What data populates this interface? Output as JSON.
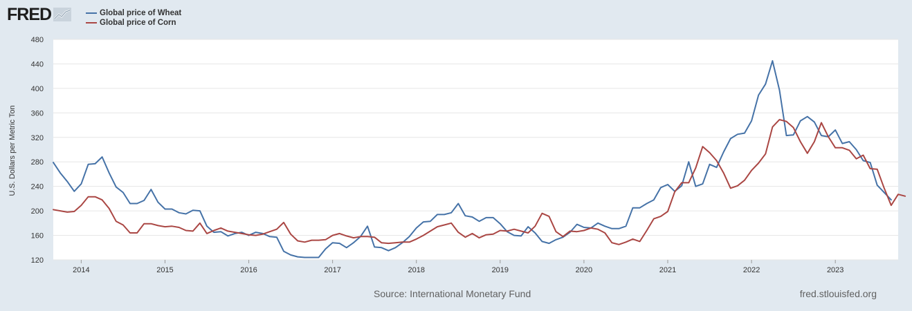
{
  "header": {
    "logo_text": "FRED",
    "logo_icon": "trend-chart-icon"
  },
  "legend": [
    {
      "label": "Global price of Wheat",
      "color": "#4572a7"
    },
    {
      "label": "Global price of Corn",
      "color": "#aa4643"
    }
  ],
  "footer": {
    "source": "Source: International Monetary Fund",
    "site": "fred.stlouisfed.org"
  },
  "colors": {
    "background": "#e1e9f0",
    "plot_background": "#ffffff",
    "grid": "#e6e6e6",
    "wheat": "#4572a7",
    "corn": "#aa4643"
  },
  "chart_data": {
    "type": "line",
    "title": "",
    "xlabel": "",
    "ylabel": "U.S. Dollars per Metric Ton",
    "x_range": [
      "2013-09",
      "2023-10"
    ],
    "x_tick_labels": [
      "2014",
      "2015",
      "2016",
      "2017",
      "2018",
      "2019",
      "2020",
      "2021",
      "2022",
      "2023"
    ],
    "ylim": [
      120,
      480
    ],
    "y_ticks": [
      120,
      160,
      200,
      240,
      280,
      320,
      360,
      400,
      440,
      480
    ],
    "grid": true,
    "legend_position": "top-left",
    "series": [
      {
        "name": "Global price of Wheat",
        "color": "#4572a7",
        "points": [
          [
            "2013-09",
            279
          ],
          [
            "2013-10",
            262
          ],
          [
            "2013-11",
            248
          ],
          [
            "2013-12",
            232
          ],
          [
            "2014-01",
            244
          ],
          [
            "2014-02",
            276
          ],
          [
            "2014-03",
            277
          ],
          [
            "2014-04",
            288
          ],
          [
            "2014-05",
            262
          ],
          [
            "2014-06",
            239
          ],
          [
            "2014-07",
            230
          ],
          [
            "2014-08",
            212
          ],
          [
            "2014-09",
            212
          ],
          [
            "2014-10",
            217
          ],
          [
            "2014-11",
            235
          ],
          [
            "2014-12",
            214
          ],
          [
            "2015-01",
            203
          ],
          [
            "2015-02",
            203
          ],
          [
            "2015-03",
            197
          ],
          [
            "2015-04",
            195
          ],
          [
            "2015-05",
            201
          ],
          [
            "2015-06",
            200
          ],
          [
            "2015-07",
            175
          ],
          [
            "2015-08",
            165
          ],
          [
            "2015-09",
            166
          ],
          [
            "2015-10",
            159
          ],
          [
            "2015-11",
            163
          ],
          [
            "2015-12",
            165
          ],
          [
            "2016-01",
            160
          ],
          [
            "2016-02",
            165
          ],
          [
            "2016-03",
            163
          ],
          [
            "2016-04",
            158
          ],
          [
            "2016-05",
            157
          ],
          [
            "2016-06",
            134
          ],
          [
            "2016-07",
            128
          ],
          [
            "2016-08",
            125
          ],
          [
            "2016-09",
            124
          ],
          [
            "2016-10",
            124
          ],
          [
            "2016-11",
            124
          ],
          [
            "2016-12",
            138
          ],
          [
            "2017-01",
            148
          ],
          [
            "2017-02",
            147
          ],
          [
            "2017-03",
            140
          ],
          [
            "2017-04",
            148
          ],
          [
            "2017-05",
            158
          ],
          [
            "2017-06",
            175
          ],
          [
            "2017-07",
            141
          ],
          [
            "2017-08",
            140
          ],
          [
            "2017-09",
            135
          ],
          [
            "2017-10",
            140
          ],
          [
            "2017-11",
            148
          ],
          [
            "2017-12",
            158
          ],
          [
            "2018-01",
            172
          ],
          [
            "2018-02",
            182
          ],
          [
            "2018-03",
            183
          ],
          [
            "2018-04",
            194
          ],
          [
            "2018-05",
            194
          ],
          [
            "2018-06",
            197
          ],
          [
            "2018-07",
            212
          ],
          [
            "2018-08",
            192
          ],
          [
            "2018-09",
            190
          ],
          [
            "2018-10",
            183
          ],
          [
            "2018-11",
            189
          ],
          [
            "2018-12",
            189
          ],
          [
            "2019-01",
            179
          ],
          [
            "2019-02",
            166
          ],
          [
            "2019-03",
            160
          ],
          [
            "2019-04",
            159
          ],
          [
            "2019-05",
            174
          ],
          [
            "2019-06",
            164
          ],
          [
            "2019-07",
            150
          ],
          [
            "2019-08",
            147
          ],
          [
            "2019-09",
            153
          ],
          [
            "2019-10",
            157
          ],
          [
            "2019-11",
            165
          ],
          [
            "2019-12",
            178
          ],
          [
            "2020-01",
            173
          ],
          [
            "2020-02",
            172
          ],
          [
            "2020-03",
            180
          ],
          [
            "2020-04",
            175
          ],
          [
            "2020-05",
            171
          ],
          [
            "2020-06",
            171
          ],
          [
            "2020-07",
            175
          ],
          [
            "2020-08",
            205
          ],
          [
            "2020-09",
            205
          ],
          [
            "2020-10",
            212
          ],
          [
            "2020-11",
            218
          ],
          [
            "2020-12",
            238
          ],
          [
            "2021-01",
            243
          ],
          [
            "2021-02",
            232
          ],
          [
            "2021-03",
            241
          ],
          [
            "2021-04",
            280
          ],
          [
            "2021-05",
            240
          ],
          [
            "2021-06",
            244
          ],
          [
            "2021-07",
            276
          ],
          [
            "2021-08",
            271
          ],
          [
            "2021-09",
            296
          ],
          [
            "2021-10",
            318
          ],
          [
            "2021-11",
            325
          ],
          [
            "2021-12",
            327
          ],
          [
            "2022-01",
            347
          ],
          [
            "2022-02",
            389
          ],
          [
            "2022-03",
            407
          ],
          [
            "2022-04",
            445
          ],
          [
            "2022-05",
            397
          ],
          [
            "2022-06",
            323
          ],
          [
            "2022-07",
            324
          ],
          [
            "2022-08",
            347
          ],
          [
            "2022-09",
            354
          ],
          [
            "2022-10",
            345
          ],
          [
            "2022-11",
            323
          ],
          [
            "2022-12",
            321
          ],
          [
            "2023-01",
            332
          ],
          [
            "2023-02",
            310
          ],
          [
            "2023-03",
            313
          ],
          [
            "2023-04",
            300
          ],
          [
            "2023-05",
            282
          ],
          [
            "2023-06",
            279
          ],
          [
            "2023-07",
            242
          ],
          [
            "2023-08",
            230
          ],
          [
            "2023-09",
            218
          ]
        ]
      },
      {
        "name": "Global price of Corn",
        "color": "#aa4643",
        "points": [
          [
            "2013-09",
            202
          ],
          [
            "2013-10",
            200
          ],
          [
            "2013-11",
            198
          ],
          [
            "2013-12",
            199
          ],
          [
            "2014-01",
            209
          ],
          [
            "2014-02",
            223
          ],
          [
            "2014-03",
            223
          ],
          [
            "2014-04",
            218
          ],
          [
            "2014-05",
            204
          ],
          [
            "2014-06",
            183
          ],
          [
            "2014-07",
            177
          ],
          [
            "2014-08",
            164
          ],
          [
            "2014-09",
            164
          ],
          [
            "2014-10",
            179
          ],
          [
            "2014-11",
            179
          ],
          [
            "2014-12",
            176
          ],
          [
            "2015-01",
            174
          ],
          [
            "2015-02",
            175
          ],
          [
            "2015-03",
            173
          ],
          [
            "2015-04",
            168
          ],
          [
            "2015-05",
            167
          ],
          [
            "2015-06",
            180
          ],
          [
            "2015-07",
            163
          ],
          [
            "2015-08",
            168
          ],
          [
            "2015-09",
            172
          ],
          [
            "2015-10",
            167
          ],
          [
            "2015-11",
            165
          ],
          [
            "2015-12",
            163
          ],
          [
            "2016-01",
            161
          ],
          [
            "2016-02",
            160
          ],
          [
            "2016-03",
            162
          ],
          [
            "2016-04",
            166
          ],
          [
            "2016-05",
            170
          ],
          [
            "2016-06",
            181
          ],
          [
            "2016-07",
            162
          ],
          [
            "2016-08",
            151
          ],
          [
            "2016-09",
            149
          ],
          [
            "2016-10",
            152
          ],
          [
            "2016-11",
            152
          ],
          [
            "2016-12",
            153
          ],
          [
            "2017-01",
            160
          ],
          [
            "2017-02",
            163
          ],
          [
            "2017-03",
            159
          ],
          [
            "2017-04",
            156
          ],
          [
            "2017-05",
            158
          ],
          [
            "2017-06",
            158
          ],
          [
            "2017-07",
            157
          ],
          [
            "2017-08",
            148
          ],
          [
            "2017-09",
            147
          ],
          [
            "2017-10",
            148
          ],
          [
            "2017-11",
            149
          ],
          [
            "2017-12",
            149
          ],
          [
            "2018-01",
            154
          ],
          [
            "2018-02",
            160
          ],
          [
            "2018-03",
            167
          ],
          [
            "2018-04",
            174
          ],
          [
            "2018-05",
            177
          ],
          [
            "2018-06",
            180
          ],
          [
            "2018-07",
            165
          ],
          [
            "2018-08",
            157
          ],
          [
            "2018-09",
            163
          ],
          [
            "2018-10",
            156
          ],
          [
            "2018-11",
            161
          ],
          [
            "2018-12",
            162
          ],
          [
            "2019-01",
            168
          ],
          [
            "2019-02",
            167
          ],
          [
            "2019-03",
            170
          ],
          [
            "2019-04",
            167
          ],
          [
            "2019-05",
            164
          ],
          [
            "2019-06",
            175
          ],
          [
            "2019-07",
            196
          ],
          [
            "2019-08",
            191
          ],
          [
            "2019-09",
            166
          ],
          [
            "2019-10",
            158
          ],
          [
            "2019-11",
            167
          ],
          [
            "2019-12",
            166
          ],
          [
            "2020-01",
            168
          ],
          [
            "2020-02",
            172
          ],
          [
            "2020-03",
            170
          ],
          [
            "2020-04",
            164
          ],
          [
            "2020-05",
            148
          ],
          [
            "2020-06",
            145
          ],
          [
            "2020-07",
            149
          ],
          [
            "2020-08",
            154
          ],
          [
            "2020-09",
            150
          ],
          [
            "2020-10",
            168
          ],
          [
            "2020-11",
            187
          ],
          [
            "2020-12",
            191
          ],
          [
            "2021-01",
            199
          ],
          [
            "2021-02",
            231
          ],
          [
            "2021-03",
            246
          ],
          [
            "2021-04",
            246
          ],
          [
            "2021-05",
            270
          ],
          [
            "2021-06",
            305
          ],
          [
            "2021-07",
            295
          ],
          [
            "2021-08",
            282
          ],
          [
            "2021-09",
            262
          ],
          [
            "2021-10",
            237
          ],
          [
            "2021-11",
            241
          ],
          [
            "2021-12",
            250
          ],
          [
            "2022-01",
            266
          ],
          [
            "2022-02",
            278
          ],
          [
            "2022-03",
            293
          ],
          [
            "2022-04",
            337
          ],
          [
            "2022-05",
            349
          ],
          [
            "2022-06",
            346
          ],
          [
            "2022-07",
            336
          ],
          [
            "2022-08",
            313
          ],
          [
            "2022-09",
            294
          ],
          [
            "2022-10",
            313
          ],
          [
            "2022-11",
            344
          ],
          [
            "2022-12",
            321
          ],
          [
            "2023-01",
            303
          ],
          [
            "2023-02",
            303
          ],
          [
            "2023-03",
            299
          ],
          [
            "2023-04",
            285
          ],
          [
            "2023-05",
            291
          ],
          [
            "2023-06",
            269
          ],
          [
            "2023-07",
            268
          ],
          [
            "2023-08",
            237
          ],
          [
            "2023-09",
            209
          ],
          [
            "2023-10",
            227
          ],
          [
            "2023-11",
            224
          ]
        ]
      }
    ]
  }
}
